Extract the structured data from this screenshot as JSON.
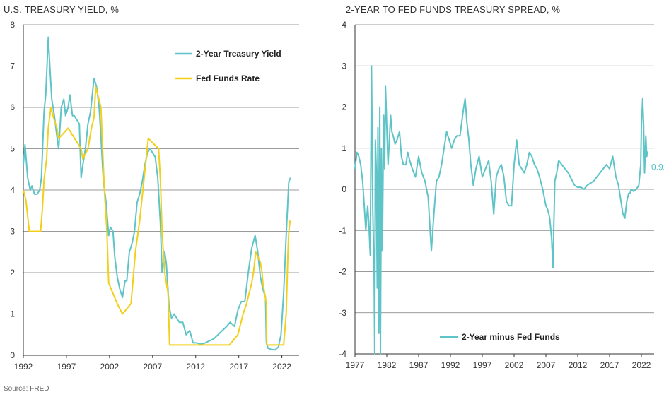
{
  "titles": {
    "left": "U.S. TREASURY YIELD, %",
    "right": "2-YEAR TO FED FUNDS TREASURY SPREAD, %"
  },
  "source": "Source: FRED",
  "colors": {
    "teal": "#5ec4c8",
    "gold": "#f2cf1a",
    "grid": "#7a7a7a",
    "axis": "#333333"
  },
  "chart_data": [
    {
      "type": "line",
      "title": "U.S. TREASURY YIELD, %",
      "xlim": [
        1992,
        2024
      ],
      "ylim": [
        0,
        8
      ],
      "x_ticks": [
        1992,
        1997,
        2002,
        2007,
        2012,
        2017,
        2022
      ],
      "y_ticks": [
        0,
        1,
        2,
        3,
        4,
        5,
        6,
        7,
        8
      ],
      "grid": true,
      "legend_position": "top-right",
      "series": [
        {
          "name": "2-Year Treasury Yield",
          "color": "#5ec4c8",
          "x": [
            1992.0,
            1992.2,
            1992.5,
            1992.8,
            1993.0,
            1993.3,
            1993.6,
            1993.9,
            1994.1,
            1994.4,
            1994.6,
            1994.9,
            1995.1,
            1995.3,
            1995.6,
            1995.9,
            1996.1,
            1996.4,
            1996.7,
            1996.9,
            1997.2,
            1997.4,
            1997.7,
            1997.9,
            1998.2,
            1998.5,
            1998.7,
            1998.9,
            1999.2,
            1999.5,
            1999.8,
            2000.0,
            2000.2,
            2000.5,
            2000.8,
            2001.0,
            2001.3,
            2001.6,
            2001.9,
            2002.1,
            2002.4,
            2002.6,
            2002.9,
            2003.2,
            2003.5,
            2003.8,
            2004.0,
            2004.3,
            2004.6,
            2004.9,
            2005.2,
            2005.5,
            2005.8,
            2006.1,
            2006.4,
            2006.7,
            2007.0,
            2007.3,
            2007.6,
            2007.9,
            2008.1,
            2008.4,
            2008.6,
            2008.9,
            2009.2,
            2009.5,
            2009.8,
            2010.1,
            2010.5,
            2010.9,
            2011.3,
            2011.7,
            2012.1,
            2012.6,
            2013.1,
            2013.6,
            2014.1,
            2014.6,
            2015.1,
            2015.6,
            2016.0,
            2016.5,
            2016.9,
            2017.3,
            2017.7,
            2018.1,
            2018.5,
            2018.9,
            2019.2,
            2019.5,
            2019.8,
            2020.1,
            2020.2,
            2020.4,
            2020.8,
            2021.2,
            2021.6,
            2021.9,
            2022.2,
            2022.5,
            2022.8,
            2023.0
          ],
          "values": [
            4.6,
            5.1,
            4.3,
            4.0,
            4.1,
            3.9,
            3.9,
            4.0,
            4.3,
            5.9,
            6.3,
            7.7,
            6.9,
            6.2,
            5.8,
            5.3,
            5.0,
            6.0,
            6.2,
            5.8,
            6.0,
            6.3,
            5.8,
            5.8,
            5.7,
            5.6,
            4.3,
            4.6,
            5.0,
            5.6,
            5.9,
            6.3,
            6.7,
            6.5,
            6.0,
            5.3,
            4.2,
            3.7,
            2.9,
            3.1,
            3.0,
            2.4,
            1.9,
            1.6,
            1.4,
            1.8,
            1.8,
            2.5,
            2.7,
            3.0,
            3.7,
            3.9,
            4.2,
            4.6,
            4.9,
            5.0,
            4.9,
            4.8,
            4.3,
            3.2,
            2.0,
            2.5,
            2.2,
            1.2,
            0.9,
            1.0,
            0.9,
            0.8,
            0.8,
            0.5,
            0.6,
            0.3,
            0.3,
            0.27,
            0.3,
            0.35,
            0.4,
            0.5,
            0.6,
            0.7,
            0.8,
            0.7,
            1.1,
            1.3,
            1.3,
            2.0,
            2.6,
            2.9,
            2.5,
            1.9,
            1.6,
            1.4,
            0.3,
            0.17,
            0.14,
            0.13,
            0.2,
            0.5,
            1.5,
            2.9,
            4.2,
            4.3
          ]
        },
        {
          "name": "Fed Funds Rate",
          "color": "#f2cf1a",
          "x": [
            1992.0,
            1992.3,
            1992.7,
            1994.0,
            1994.2,
            1994.4,
            1994.7,
            1994.9,
            1995.2,
            1995.5,
            1995.9,
            1996.1,
            1997.2,
            1998.7,
            1998.9,
            1999.5,
            1999.9,
            2000.2,
            2000.4,
            2001.0,
            2001.2,
            2001.4,
            2001.7,
            2001.9,
            2002.9,
            2003.5,
            2004.5,
            2004.7,
            2005.0,
            2005.5,
            2006.0,
            2006.5,
            2007.7,
            2007.9,
            2008.1,
            2008.4,
            2008.8,
            2008.97,
            2015.9,
            2016.9,
            2017.2,
            2017.5,
            2017.9,
            2018.2,
            2018.5,
            2018.7,
            2018.97,
            2019.5,
            2019.7,
            2019.8,
            2020.2,
            2020.25,
            2022.2,
            2022.3,
            2022.5,
            2022.7,
            2022.8,
            2022.95,
            2023.0
          ],
          "values": [
            4.0,
            3.75,
            3.0,
            3.0,
            3.5,
            4.25,
            4.75,
            5.5,
            6.0,
            5.75,
            5.5,
            5.25,
            5.5,
            5.0,
            4.75,
            5.0,
            5.5,
            5.75,
            6.5,
            6.0,
            5.0,
            4.0,
            3.0,
            1.75,
            1.25,
            1.0,
            1.25,
            1.75,
            2.5,
            3.25,
            4.25,
            5.25,
            5.0,
            4.25,
            3.0,
            2.0,
            1.5,
            0.25,
            0.25,
            0.5,
            0.75,
            1.0,
            1.25,
            1.5,
            1.75,
            2.0,
            2.5,
            2.25,
            2.0,
            1.75,
            1.25,
            0.25,
            0.25,
            0.5,
            1.0,
            2.5,
            3.0,
            3.25,
            3.25
          ]
        }
      ]
    },
    {
      "type": "line",
      "title": "2-YEAR TO FED FUNDS TREASURY SPREAD, %",
      "xlim": [
        1977,
        2024
      ],
      "ylim": [
        -4,
        4
      ],
      "x_ticks": [
        1977,
        1982,
        1987,
        1992,
        1997,
        2002,
        2007,
        2012,
        2017,
        2022
      ],
      "y_ticks": [
        -4,
        -3,
        -2,
        -1,
        0,
        1,
        2,
        3,
        4
      ],
      "grid": true,
      "legend_position": "bottom-center",
      "end_label": "0.924",
      "series": [
        {
          "name": "2-Year minus Fed Funds",
          "color": "#5ec4c8",
          "x": [
            1977.0,
            1977.3,
            1977.6,
            1977.9,
            1978.2,
            1978.5,
            1978.7,
            1979.0,
            1979.2,
            1979.4,
            1979.6,
            1979.8,
            1980.0,
            1980.1,
            1980.2,
            1980.35,
            1980.5,
            1980.6,
            1980.75,
            1980.9,
            1981.0,
            1981.15,
            1981.3,
            1981.5,
            1981.65,
            1981.8,
            1982.0,
            1982.2,
            1982.4,
            1982.6,
            1982.8,
            1983.0,
            1983.3,
            1983.6,
            1984.0,
            1984.3,
            1984.6,
            1985.0,
            1985.3,
            1985.6,
            1986.0,
            1986.5,
            1987.0,
            1987.5,
            1988.0,
            1988.5,
            1989.0,
            1989.4,
            1989.8,
            1990.2,
            1990.6,
            1991.0,
            1991.4,
            1991.8,
            1992.2,
            1992.6,
            1993.0,
            1993.5,
            1994.0,
            1994.3,
            1994.6,
            1994.9,
            1995.2,
            1995.6,
            1996.0,
            1996.5,
            1997.0,
            1997.5,
            1998.0,
            1998.4,
            1998.8,
            1999.2,
            1999.6,
            2000.0,
            2000.4,
            2000.8,
            2001.2,
            2001.6,
            2002.0,
            2002.4,
            2002.8,
            2003.2,
            2003.6,
            2004.0,
            2004.4,
            2004.8,
            2005.2,
            2005.6,
            2006.0,
            2006.5,
            2007.0,
            2007.3,
            2007.6,
            2007.9,
            2008.1,
            2008.4,
            2008.7,
            2009.0,
            2009.5,
            2010.0,
            2010.5,
            2011.0,
            2011.5,
            2012.0,
            2012.5,
            2013.0,
            2013.5,
            2014.0,
            2014.5,
            2015.0,
            2015.5,
            2016.0,
            2016.5,
            2017.0,
            2017.5,
            2018.0,
            2018.4,
            2018.8,
            2019.1,
            2019.4,
            2019.7,
            2020.0,
            2020.2,
            2020.4,
            2020.8,
            2021.2,
            2021.6,
            2021.9,
            2022.0,
            2022.2,
            2022.35,
            2022.5,
            2022.7,
            2022.85,
            2023.0
          ],
          "values": [
            0.5,
            0.9,
            0.8,
            0.6,
            0.2,
            -0.5,
            -1.0,
            -0.4,
            -0.9,
            -1.6,
            3.0,
            -0.5,
            -2.0,
            -4.0,
            1.2,
            0.5,
            -2.4,
            1.5,
            -3.5,
            2.0,
            -4.0,
            1.0,
            -1.5,
            1.8,
            0.5,
            2.5,
            1.5,
            0.6,
            1.2,
            1.8,
            1.4,
            1.3,
            1.1,
            1.2,
            1.4,
            0.8,
            0.6,
            0.6,
            0.9,
            0.7,
            0.5,
            0.3,
            0.8,
            0.4,
            0.2,
            -0.2,
            -1.5,
            -0.6,
            0.2,
            0.3,
            0.6,
            1.0,
            1.4,
            1.2,
            1.0,
            1.2,
            1.3,
            1.3,
            1.9,
            2.2,
            1.6,
            1.2,
            0.6,
            0.1,
            0.5,
            0.8,
            0.3,
            0.5,
            0.7,
            0.2,
            -0.6,
            0.3,
            0.5,
            0.6,
            0.3,
            -0.3,
            -0.4,
            -0.4,
            0.6,
            1.2,
            0.6,
            0.5,
            0.4,
            0.6,
            0.9,
            0.8,
            0.6,
            0.5,
            0.3,
            0.0,
            -0.4,
            -0.5,
            -0.7,
            -1.2,
            -1.9,
            0.2,
            0.4,
            0.7,
            0.6,
            0.5,
            0.4,
            0.25,
            0.1,
            0.05,
            0.05,
            0.0,
            0.1,
            0.15,
            0.2,
            0.3,
            0.4,
            0.5,
            0.6,
            0.5,
            0.8,
            0.3,
            0.1,
            -0.3,
            -0.6,
            -0.7,
            -0.3,
            -0.1,
            -0.1,
            0.0,
            -0.05,
            0.0,
            0.1,
            0.6,
            1.5,
            2.2,
            1.6,
            0.4,
            1.3,
            0.8,
            0.92
          ]
        }
      ]
    }
  ]
}
